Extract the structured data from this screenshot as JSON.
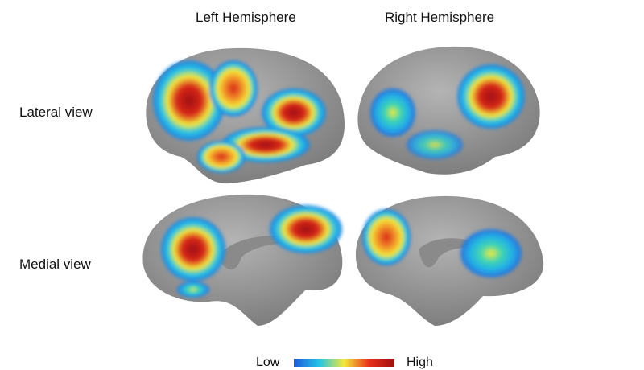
{
  "columns": {
    "left": "Left Hemisphere",
    "right": "Right Hemisphere"
  },
  "rows": {
    "lateral": "Lateral view",
    "medial": "Medial view"
  },
  "legend": {
    "low": "Low",
    "high": "High"
  },
  "colors": {
    "surface": "#9c9c9c",
    "low": "#1e5bd8",
    "mid_low": "#22c3e8",
    "mid": "#f3e93a",
    "high": "#e8301c",
    "peak": "#a01010"
  }
}
